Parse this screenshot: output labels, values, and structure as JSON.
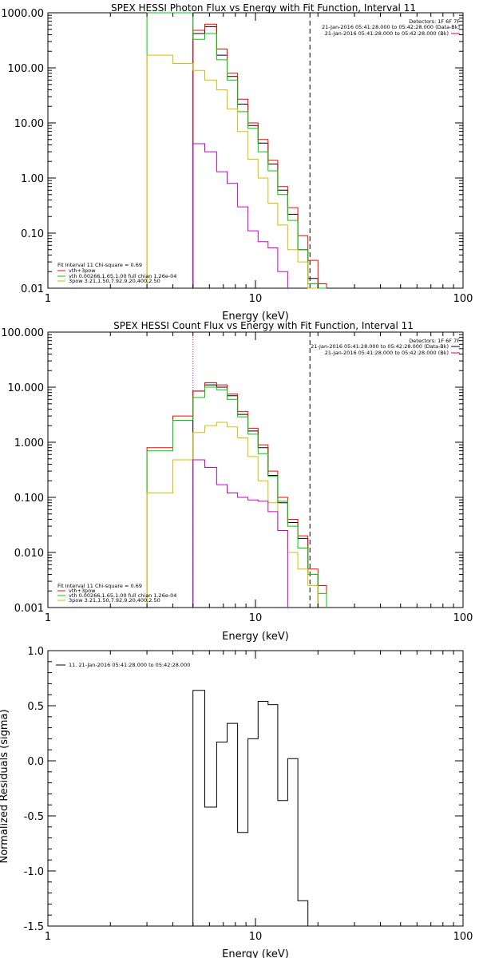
{
  "chart_data": [
    {
      "id": "photon",
      "type": "line",
      "title": "SPEX HESSI Photon Flux vs Energy with Fit Function, Interval 11",
      "xlabel": "Energy (keV)",
      "ylabel": "",
      "xscale": "log",
      "yscale": "log",
      "xlim": [
        1,
        100
      ],
      "ylim": [
        0.01,
        1000
      ],
      "xticks": [
        {
          "v": 1,
          "label": "1"
        },
        {
          "v": 10,
          "label": "10"
        },
        {
          "v": 100,
          "label": "100"
        }
      ],
      "yticks": [
        {
          "v": 0.01,
          "label": "0.01"
        },
        {
          "v": 0.1,
          "label": "0.10"
        },
        {
          "v": 1,
          "label": "1.00"
        },
        {
          "v": 10,
          "label": "10.00"
        },
        {
          "v": 100,
          "label": "100.00"
        },
        {
          "v": 1000,
          "label": "1000.00"
        }
      ],
      "vlines": [
        {
          "x": 5.0,
          "style": "solid",
          "color": "#cc00cc"
        },
        {
          "x": 18.3,
          "style": "dashed",
          "color": "#000000"
        }
      ],
      "header_text": [
        "Detectors: 1F 6F 7F",
        "21-Jan-2016 05:41:28.000 to 05:42:28.000 (Data-Bk)",
        "21-Jan-2016 05:41:28.000 to 05:42:28.000 (Bk)"
      ],
      "header_colors": [
        "",
        "#000000",
        "#cc0066"
      ],
      "legend_text": [
        "Fit Interval 11    Chi-square = 0.69",
        "vth+3pow",
        "vth 0.00266,1.65,1.00  full chian 1.26e-04",
        "3pow 3.21,1.50,7.92,9.20,400,2.50"
      ],
      "legend_colors": [
        "",
        "#ff0000",
        "#00cc00",
        "#ddbb00"
      ],
      "legend_position": "bottom-left",
      "series": [
        {
          "color": "#000000",
          "edges": [
            5.0,
            5.7,
            6.5,
            7.3,
            8.2,
            9.2,
            10.3,
            11.5,
            12.8,
            14.3,
            16.0,
            17.9,
            20.0
          ],
          "values": [
            420,
            560,
            170,
            70,
            22,
            9,
            4.3,
            1.8,
            0.6,
            0.22,
            0.05,
            0.015
          ]
        },
        {
          "color": "#ff0000",
          "edges": [
            5.0,
            5.7,
            6.5,
            7.3,
            8.2,
            9.2,
            10.3,
            11.5,
            12.8,
            14.3,
            16.0,
            17.9,
            20.0,
            22.0
          ],
          "values": [
            480,
            620,
            220,
            80,
            27,
            10,
            5,
            2.1,
            0.7,
            0.29,
            0.09,
            0.032,
            0.012
          ]
        },
        {
          "color": "#00cc00",
          "edges": [
            3.0,
            4.0,
            5.0,
            5.7,
            6.5,
            7.3,
            8.2,
            9.2,
            10.3,
            11.5,
            12.8,
            14.3,
            16.0,
            17.9,
            20.0,
            22.0
          ],
          "values": [
            1000,
            1000,
            330,
            420,
            140,
            60,
            16,
            8,
            3,
            1.35,
            0.5,
            0.17,
            0.05,
            0.012,
            0.01
          ]
        },
        {
          "color": "#ddbb00",
          "edges": [
            3.0,
            4.0,
            5.0,
            5.7,
            6.5,
            7.3,
            8.2,
            9.2,
            10.3,
            11.5,
            12.8,
            14.3,
            16.0,
            17.9,
            20.0
          ],
          "values": [
            170,
            120,
            90,
            60,
            40,
            18,
            7,
            2.2,
            1,
            0.35,
            0.14,
            0.05,
            0.03,
            0.01
          ]
        },
        {
          "color": "#cc00cc",
          "edges": [
            5.0,
            5.7,
            6.5,
            7.3,
            8.2,
            9.2,
            10.3,
            11.5,
            12.8,
            14.3
          ],
          "values": [
            4.2,
            3,
            1.3,
            0.8,
            0.3,
            0.11,
            0.07,
            0.054,
            0.02
          ]
        }
      ]
    },
    {
      "id": "count",
      "type": "line",
      "title": "SPEX HESSI Count Flux vs Energy with Fit Function, Interval 11",
      "xlabel": "Energy (keV)",
      "ylabel": "",
      "xscale": "log",
      "yscale": "log",
      "xlim": [
        1,
        100
      ],
      "ylim": [
        0.001,
        100
      ],
      "xticks": [
        {
          "v": 1,
          "label": "1"
        },
        {
          "v": 10,
          "label": "10"
        },
        {
          "v": 100,
          "label": "100"
        }
      ],
      "yticks": [
        {
          "v": 0.001,
          "label": "0.001"
        },
        {
          "v": 0.01,
          "label": "0.010"
        },
        {
          "v": 0.1,
          "label": "0.100"
        },
        {
          "v": 1,
          "label": "1.000"
        },
        {
          "v": 10,
          "label": "10.000"
        },
        {
          "v": 100,
          "label": "100.000"
        }
      ],
      "vlines": [
        {
          "x": 5.0,
          "style": "dotted",
          "color": "#cc00cc"
        },
        {
          "x": 18.3,
          "style": "dashed",
          "color": "#000000"
        }
      ],
      "header_text": [
        "Detectors: 1F 6F 7F",
        "21-Jan-2016 05:41:28.000 to 05:42:28.000 (Data-Bk)",
        "21-Jan-2016 05:41:28.000 to 05:42:28.000 (Bk)"
      ],
      "header_colors": [
        "",
        "#000000",
        "#cc0066"
      ],
      "legend_text": [
        "Fit Interval 11    Chi-square = 0.69",
        "vth+3pow",
        "vth 0.00266,1.65,1.00  full chian 1.26e-04",
        "3pow 3.21,1.50,7.92,9.20,400,2.50"
      ],
      "legend_colors": [
        "",
        "#ff0000",
        "#00cc00",
        "#ddbb00"
      ],
      "legend_position": "bottom-left",
      "series": [
        {
          "color": "#000000",
          "edges": [
            5.0,
            5.7,
            6.5,
            7.3,
            8.2,
            9.2,
            10.3,
            11.5,
            12.8,
            14.3,
            16.0,
            17.9,
            20.0
          ],
          "values": [
            8.5,
            11,
            10,
            7,
            3.2,
            1.6,
            0.8,
            0.25,
            0.08,
            0.035,
            0.018,
            0.004
          ]
        },
        {
          "color": "#ff0000",
          "edges": [
            3.0,
            4.0,
            5.0,
            5.7,
            6.5,
            7.3,
            8.2,
            9.2,
            10.3,
            11.5,
            12.8,
            14.3,
            16.0,
            17.9,
            20.0,
            22.0
          ],
          "values": [
            0.8,
            3,
            8.5,
            12,
            11,
            7.5,
            3.6,
            1.8,
            0.9,
            0.3,
            0.1,
            0.04,
            0.02,
            0.005,
            0.0025
          ]
        },
        {
          "color": "#00cc00",
          "edges": [
            3.0,
            4.0,
            5.0,
            5.7,
            6.5,
            7.3,
            8.2,
            9.2,
            10.3,
            11.5,
            12.8,
            14.3,
            16.0,
            17.9,
            20.0,
            22.0
          ],
          "values": [
            0.7,
            2.5,
            6.5,
            10,
            9,
            6,
            2.9,
            1.4,
            0.62,
            0.24,
            0.085,
            0.03,
            0.012,
            0.004,
            0.0018
          ]
        },
        {
          "color": "#ddbb00",
          "edges": [
            3.0,
            4.0,
            5.0,
            5.7,
            6.5,
            7.3,
            8.2,
            9.2,
            10.3,
            11.5,
            12.8,
            14.3,
            16.0,
            17.9,
            20.0
          ],
          "values": [
            0.12,
            0.48,
            1.5,
            2,
            2.3,
            1.9,
            1.2,
            0.55,
            0.2,
            0.08,
            0.025,
            0.01,
            0.005,
            0.0025
          ]
        },
        {
          "color": "#cc00cc",
          "edges": [
            5.0,
            5.7,
            6.5,
            7.3,
            8.2,
            9.2,
            10.3,
            11.5,
            12.8,
            14.3
          ],
          "values": [
            0.48,
            0.35,
            0.17,
            0.12,
            0.1,
            0.09,
            0.085,
            0.055,
            0.025
          ]
        }
      ]
    },
    {
      "id": "residuals",
      "type": "line",
      "title": "",
      "xlabel": "Energy (keV)",
      "ylabel": "Normalized Residuals (sigma)",
      "xscale": "log",
      "yscale": "linear",
      "xlim": [
        1,
        100
      ],
      "ylim": [
        -1.5,
        1.0
      ],
      "xticks": [
        {
          "v": 1,
          "label": "1"
        },
        {
          "v": 10,
          "label": "10"
        },
        {
          "v": 100,
          "label": "100"
        }
      ],
      "yticks": [
        {
          "v": -1.5,
          "label": "-1.5"
        },
        {
          "v": -1.0,
          "label": "-1.0"
        },
        {
          "v": -0.5,
          "label": "-0.5"
        },
        {
          "v": 0.0,
          "label": "0.0"
        },
        {
          "v": 0.5,
          "label": "0.5"
        },
        {
          "v": 1.0,
          "label": "1.0"
        }
      ],
      "vlines": [],
      "header_text": [],
      "header_colors": [],
      "legend_text": [
        "11. 21-Jan-2016 05:41:28.000 to 05:42:28.000"
      ],
      "legend_colors": [
        "#000000"
      ],
      "legend_position": "top-left",
      "series": [
        {
          "color": "#000000",
          "edges": [
            5.0,
            5.7,
            6.5,
            7.3,
            8.2,
            9.2,
            10.3,
            11.5,
            12.8,
            14.3,
            16.0,
            17.9,
            20.0
          ],
          "values": [
            0.64,
            -0.42,
            0.17,
            0.34,
            -0.65,
            0.2,
            0.54,
            0.51,
            -0.36,
            0.02,
            -1.27,
            -1.5
          ]
        }
      ]
    }
  ]
}
